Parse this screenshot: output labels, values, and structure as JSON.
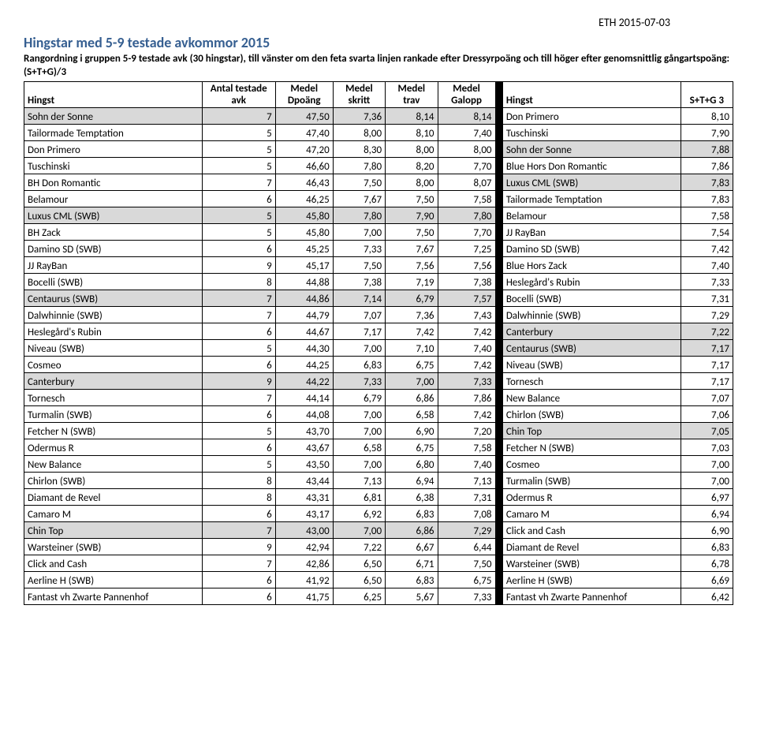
{
  "header_date": "ETH 2015-07-03",
  "title": "Hingstar med 5-9 testade avkommor 2015",
  "subtitle": "Rangordning i gruppen 5-9 testade avk (30 hingstar), till vänster om den feta svarta linjen rankade efter Dressyrpoäng och till höger efter genomsnittlig gångartspoäng: (S+T+G)/3",
  "columns": {
    "left": [
      "Hingst",
      "Antal testade avk",
      "Medel Dpoäng",
      "Medel skritt",
      "Medel trav",
      "Medel Galopp"
    ],
    "right": [
      "Hingst",
      "S+T+G 3"
    ]
  },
  "rows": [
    {
      "l": [
        "Sohn der Sonne",
        "7",
        "47,50",
        "7,36",
        "8,14",
        "8,14"
      ],
      "r": [
        "Don Primero",
        "8,10"
      ],
      "sl": true,
      "sr": false
    },
    {
      "l": [
        "Tailormade Temptation",
        "5",
        "47,40",
        "8,00",
        "8,10",
        "7,40"
      ],
      "r": [
        "Tuschinski",
        "7,90"
      ],
      "sl": false,
      "sr": false
    },
    {
      "l": [
        "Don Primero",
        "5",
        "47,20",
        "8,30",
        "8,00",
        "8,00"
      ],
      "r": [
        "Sohn der Sonne",
        "7,88"
      ],
      "sl": false,
      "sr": true
    },
    {
      "l": [
        "Tuschinski",
        "5",
        "46,60",
        "7,80",
        "8,20",
        "7,70"
      ],
      "r": [
        "Blue Hors Don Romantic",
        "7,86"
      ],
      "sl": false,
      "sr": false
    },
    {
      "l": [
        "BH Don Romantic",
        "7",
        "46,43",
        "7,50",
        "8,00",
        "8,07"
      ],
      "r": [
        "Luxus CML (SWB)",
        "7,83"
      ],
      "sl": false,
      "sr": true
    },
    {
      "l": [
        "Belamour",
        "6",
        "46,25",
        "7,67",
        "7,50",
        "7,58"
      ],
      "r": [
        "Tailormade Temptation",
        "7,83"
      ],
      "sl": false,
      "sr": false
    },
    {
      "l": [
        "Luxus CML (SWB)",
        "5",
        "45,80",
        "7,80",
        "7,90",
        "7,80"
      ],
      "r": [
        "Belamour",
        "7,58"
      ],
      "sl": true,
      "sr": false
    },
    {
      "l": [
        "BH Zack",
        "5",
        "45,80",
        "7,00",
        "7,50",
        "7,70"
      ],
      "r": [
        "JJ RayBan",
        "7,54"
      ],
      "sl": false,
      "sr": false
    },
    {
      "l": [
        "Damino SD (SWB)",
        "6",
        "45,25",
        "7,33",
        "7,67",
        "7,25"
      ],
      "r": [
        "Damino SD (SWB)",
        "7,42"
      ],
      "sl": false,
      "sr": false
    },
    {
      "l": [
        "JJ RayBan",
        "9",
        "45,17",
        "7,50",
        "7,56",
        "7,56"
      ],
      "r": [
        "Blue Hors Zack",
        "7,40"
      ],
      "sl": false,
      "sr": false
    },
    {
      "l": [
        "Bocelli (SWB)",
        "8",
        "44,88",
        "7,38",
        "7,19",
        "7,38"
      ],
      "r": [
        "Heslegård's Rubin",
        "7,33"
      ],
      "sl": false,
      "sr": false
    },
    {
      "l": [
        "Centaurus (SWB)",
        "7",
        "44,86",
        "7,14",
        "6,79",
        "7,57"
      ],
      "r": [
        "Bocelli (SWB)",
        "7,31"
      ],
      "sl": true,
      "sr": false
    },
    {
      "l": [
        "Dalwhinnie (SWB)",
        "7",
        "44,79",
        "7,07",
        "7,36",
        "7,43"
      ],
      "r": [
        "Dalwhinnie (SWB)",
        "7,29"
      ],
      "sl": false,
      "sr": false
    },
    {
      "l": [
        "Heslegård's Rubin",
        "6",
        "44,67",
        "7,17",
        "7,42",
        "7,42"
      ],
      "r": [
        "Canterbury",
        "7,22"
      ],
      "sl": false,
      "sr": true
    },
    {
      "l": [
        "Niveau (SWB)",
        "5",
        "44,30",
        "7,00",
        "7,10",
        "7,40"
      ],
      "r": [
        "Centaurus (SWB)",
        "7,17"
      ],
      "sl": false,
      "sr": true
    },
    {
      "l": [
        "Cosmeo",
        "6",
        "44,25",
        "6,83",
        "6,75",
        "7,42"
      ],
      "r": [
        "Niveau (SWB)",
        "7,17"
      ],
      "sl": false,
      "sr": false
    },
    {
      "l": [
        "Canterbury",
        "9",
        "44,22",
        "7,33",
        "7,00",
        "7,33"
      ],
      "r": [
        "Tornesch",
        "7,17"
      ],
      "sl": true,
      "sr": false
    },
    {
      "l": [
        "Tornesch",
        "7",
        "44,14",
        "6,79",
        "6,86",
        "7,86"
      ],
      "r": [
        "New Balance",
        "7,07"
      ],
      "sl": false,
      "sr": false
    },
    {
      "l": [
        "Turmalin (SWB)",
        "6",
        "44,08",
        "7,00",
        "6,58",
        "7,42"
      ],
      "r": [
        "Chirlon (SWB)",
        "7,06"
      ],
      "sl": false,
      "sr": false
    },
    {
      "l": [
        "Fetcher N (SWB)",
        "5",
        "43,70",
        "7,00",
        "6,90",
        "7,20"
      ],
      "r": [
        "Chin Top",
        "7,05"
      ],
      "sl": false,
      "sr": true
    },
    {
      "l": [
        "Odermus R",
        "6",
        "43,67",
        "6,58",
        "6,75",
        "7,58"
      ],
      "r": [
        "Fetcher N (SWB)",
        "7,03"
      ],
      "sl": false,
      "sr": false
    },
    {
      "l": [
        "New Balance",
        "5",
        "43,50",
        "7,00",
        "6,80",
        "7,40"
      ],
      "r": [
        "Cosmeo",
        "7,00"
      ],
      "sl": false,
      "sr": false
    },
    {
      "l": [
        "Chirlon (SWB)",
        "8",
        "43,44",
        "7,13",
        "6,94",
        "7,13"
      ],
      "r": [
        "Turmalin (SWB)",
        "7,00"
      ],
      "sl": false,
      "sr": false
    },
    {
      "l": [
        "Diamant de Revel",
        "8",
        "43,31",
        "6,81",
        "6,38",
        "7,31"
      ],
      "r": [
        "Odermus R",
        "6,97"
      ],
      "sl": false,
      "sr": false
    },
    {
      "l": [
        "Camaro M",
        "6",
        "43,17",
        "6,92",
        "6,83",
        "7,08"
      ],
      "r": [
        "Camaro M",
        "6,94"
      ],
      "sl": false,
      "sr": false
    },
    {
      "l": [
        "Chin Top",
        "7",
        "43,00",
        "7,00",
        "6,86",
        "7,29"
      ],
      "r": [
        "Click and Cash",
        "6,90"
      ],
      "sl": true,
      "sr": false
    },
    {
      "l": [
        "Warsteiner (SWB)",
        "9",
        "42,94",
        "7,22",
        "6,67",
        "6,44"
      ],
      "r": [
        "Diamant de Revel",
        "6,83"
      ],
      "sl": false,
      "sr": false
    },
    {
      "l": [
        "Click and Cash",
        "7",
        "42,86",
        "6,50",
        "6,71",
        "7,50"
      ],
      "r": [
        "Warsteiner (SWB)",
        "6,78"
      ],
      "sl": false,
      "sr": false
    },
    {
      "l": [
        "Aerline H (SWB)",
        "6",
        "41,92",
        "6,50",
        "6,83",
        "6,75"
      ],
      "r": [
        "Aerline H (SWB)",
        "6,69"
      ],
      "sl": false,
      "sr": false
    },
    {
      "l": [
        "Fantast vh Zwarte Pannenhof",
        "6",
        "41,75",
        "6,25",
        "5,67",
        "7,33"
      ],
      "r": [
        "Fantast vh Zwarte Pannenhof",
        "6,42"
      ],
      "sl": false,
      "sr": false
    }
  ]
}
